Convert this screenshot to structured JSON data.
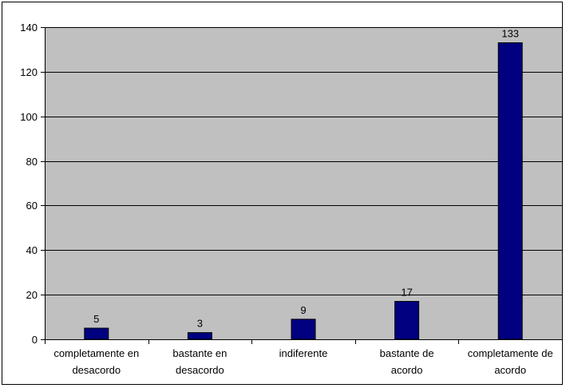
{
  "chart_data": {
    "type": "bar",
    "categories": [
      [
        "completamente en",
        "desacordo"
      ],
      [
        "bastante en",
        "desacordo"
      ],
      [
        "indiferente"
      ],
      [
        "bastante de",
        "acordo"
      ],
      [
        "completamente de",
        "acordo"
      ]
    ],
    "values": [
      5,
      3,
      9,
      17,
      133
    ],
    "data_labels": [
      "5",
      "3",
      "9",
      "17",
      "133"
    ],
    "ylim": [
      0,
      140
    ],
    "yticks": [
      0,
      20,
      40,
      60,
      80,
      100,
      120,
      140
    ],
    "ytick_labels": [
      "0",
      "20",
      "40",
      "60",
      "80",
      "100",
      "120",
      "140"
    ],
    "grid": true,
    "legend": "none",
    "title": "",
    "xlabel": "",
    "ylabel": "",
    "colors": {
      "plot_background": "#c0c0c0",
      "bar_fill": "#000080",
      "gridline": "#000000"
    }
  }
}
